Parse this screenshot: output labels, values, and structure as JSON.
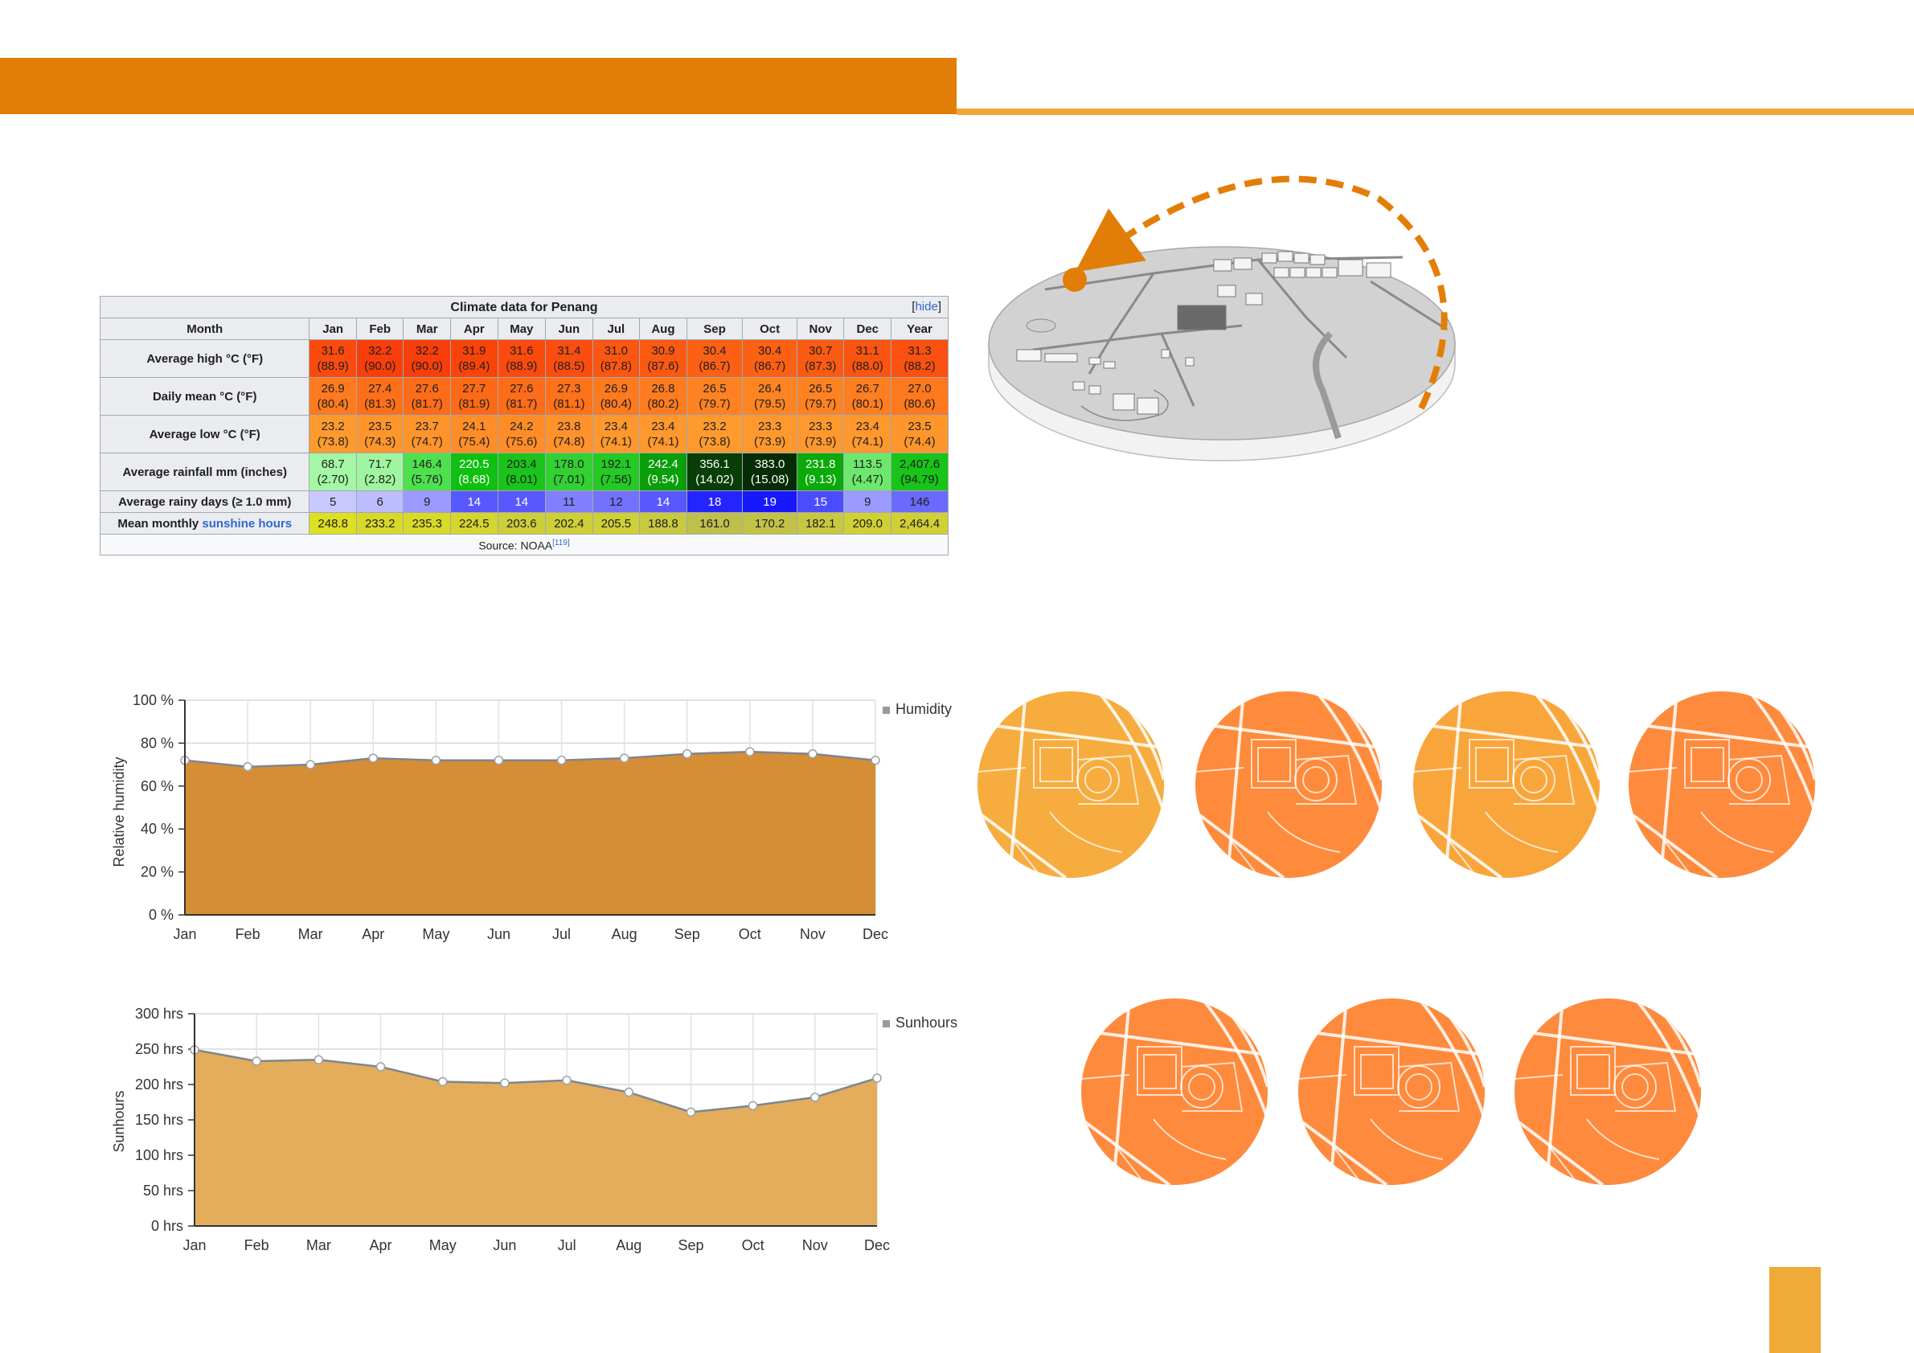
{
  "page": {
    "colors": {
      "top_bar": "#e27e07",
      "accent_line": "#efa636",
      "corner_block": "#efaa38"
    }
  },
  "climate_table": {
    "caption": "Climate data for Penang",
    "hide_label": "hide",
    "header": [
      "Month",
      "Jan",
      "Feb",
      "Mar",
      "Apr",
      "May",
      "Jun",
      "Jul",
      "Aug",
      "Sep",
      "Oct",
      "Nov",
      "Dec",
      "Year"
    ],
    "rows": [
      {
        "label": "Average high °C (°F)",
        "cells": [
          {
            "v": "31.6",
            "f": "(88.9)",
            "bg": "#fa4a0e",
            "fg": "#202020"
          },
          {
            "v": "32.2",
            "f": "(90.0)",
            "bg": "#f83e0a",
            "fg": "#202020"
          },
          {
            "v": "32.2",
            "f": "(90.0)",
            "bg": "#f83e0a",
            "fg": "#202020"
          },
          {
            "v": "31.9",
            "f": "(89.4)",
            "bg": "#f94409",
            "fg": "#202020"
          },
          {
            "v": "31.6",
            "f": "(88.9)",
            "bg": "#fa4a0e",
            "fg": "#202020"
          },
          {
            "v": "31.4",
            "f": "(88.5)",
            "bg": "#fa4e10",
            "fg": "#202020"
          },
          {
            "v": "31.0",
            "f": "(87.8)",
            "bg": "#fb5612",
            "fg": "#202020"
          },
          {
            "v": "30.9",
            "f": "(87.6)",
            "bg": "#fb5812",
            "fg": "#202020"
          },
          {
            "v": "30.4",
            "f": "(86.7)",
            "bg": "#fc6014",
            "fg": "#202020"
          },
          {
            "v": "30.4",
            "f": "(86.7)",
            "bg": "#fc6014",
            "fg": "#202020"
          },
          {
            "v": "30.7",
            "f": "(87.3)",
            "bg": "#fb5a13",
            "fg": "#202020"
          },
          {
            "v": "31.1",
            "f": "(88.0)",
            "bg": "#fa5411",
            "fg": "#202020"
          },
          {
            "v": "31.3",
            "f": "(88.2)",
            "bg": "#fa5010",
            "fg": "#202020"
          }
        ]
      },
      {
        "label": "Daily mean °C (°F)",
        "cells": [
          {
            "v": "26.9",
            "f": "(80.4)",
            "bg": "#fe7a1e",
            "fg": "#202020"
          },
          {
            "v": "27.4",
            "f": "(81.3)",
            "bg": "#fd7019",
            "fg": "#202020"
          },
          {
            "v": "27.6",
            "f": "(81.7)",
            "bg": "#fd6c18",
            "fg": "#202020"
          },
          {
            "v": "27.7",
            "f": "(81.9)",
            "bg": "#fd6a17",
            "fg": "#202020"
          },
          {
            "v": "27.6",
            "f": "(81.7)",
            "bg": "#fd6c18",
            "fg": "#202020"
          },
          {
            "v": "27.3",
            "f": "(81.1)",
            "bg": "#fd721a",
            "fg": "#202020"
          },
          {
            "v": "26.9",
            "f": "(80.4)",
            "bg": "#fe7a1e",
            "fg": "#202020"
          },
          {
            "v": "26.8",
            "f": "(80.2)",
            "bg": "#fe7c1f",
            "fg": "#202020"
          },
          {
            "v": "26.5",
            "f": "(79.7)",
            "bg": "#fe8222",
            "fg": "#202020"
          },
          {
            "v": "26.4",
            "f": "(79.5)",
            "bg": "#fe8422",
            "fg": "#202020"
          },
          {
            "v": "26.5",
            "f": "(79.7)",
            "bg": "#fe8222",
            "fg": "#202020"
          },
          {
            "v": "26.7",
            "f": "(80.1)",
            "bg": "#fe7e20",
            "fg": "#202020"
          },
          {
            "v": "27.0",
            "f": "(80.6)",
            "bg": "#fe781d",
            "fg": "#202020"
          }
        ]
      },
      {
        "label": "Average low °C (°F)",
        "cells": [
          {
            "v": "23.2",
            "f": "(73.8)",
            "bg": "#ff9a2e",
            "fg": "#202020"
          },
          {
            "v": "23.5",
            "f": "(74.3)",
            "bg": "#ff962c",
            "fg": "#202020"
          },
          {
            "v": "23.7",
            "f": "(74.7)",
            "bg": "#ff942b",
            "fg": "#202020"
          },
          {
            "v": "24.1",
            "f": "(75.4)",
            "bg": "#ff8e28",
            "fg": "#202020"
          },
          {
            "v": "24.2",
            "f": "(75.6)",
            "bg": "#ff8c27",
            "fg": "#202020"
          },
          {
            "v": "23.8",
            "f": "(74.8)",
            "bg": "#ff922a",
            "fg": "#202020"
          },
          {
            "v": "23.4",
            "f": "(74.1)",
            "bg": "#ff982d",
            "fg": "#202020"
          },
          {
            "v": "23.4",
            "f": "(74.1)",
            "bg": "#ff982d",
            "fg": "#202020"
          },
          {
            "v": "23.2",
            "f": "(73.8)",
            "bg": "#ff9a2e",
            "fg": "#202020"
          },
          {
            "v": "23.3",
            "f": "(73.9)",
            "bg": "#ff992e",
            "fg": "#202020"
          },
          {
            "v": "23.3",
            "f": "(73.9)",
            "bg": "#ff992e",
            "fg": "#202020"
          },
          {
            "v": "23.4",
            "f": "(74.1)",
            "bg": "#ff982d",
            "fg": "#202020"
          },
          {
            "v": "23.5",
            "f": "(74.4)",
            "bg": "#ff962c",
            "fg": "#202020"
          }
        ]
      },
      {
        "label": "Average rainfall mm (inches)",
        "cells": [
          {
            "v": "68.7",
            "f": "(2.70)",
            "bg": "#a4f7a4",
            "fg": "#202020"
          },
          {
            "v": "71.7",
            "f": "(2.82)",
            "bg": "#a0f6a0",
            "fg": "#202020"
          },
          {
            "v": "146.4",
            "f": "(5.76)",
            "bg": "#4ee04e",
            "fg": "#202020"
          },
          {
            "v": "220.5",
            "f": "(8.68)",
            "bg": "#10c010",
            "fg": "#ffffff"
          },
          {
            "v": "203.4",
            "f": "(8.01)",
            "bg": "#1ac41a",
            "fg": "#202020"
          },
          {
            "v": "178.0",
            "f": "(7.01)",
            "bg": "#32d032",
            "fg": "#202020"
          },
          {
            "v": "192.1",
            "f": "(7.56)",
            "bg": "#24c924",
            "fg": "#202020"
          },
          {
            "v": "242.4",
            "f": "(9.54)",
            "bg": "#0a9e0a",
            "fg": "#ffffff"
          },
          {
            "v": "356.1",
            "f": "(14.02)",
            "bg": "#073f07",
            "fg": "#ffffff"
          },
          {
            "v": "383.0",
            "f": "(15.08)",
            "bg": "#052d05",
            "fg": "#ffffff"
          },
          {
            "v": "231.8",
            "f": "(9.13)",
            "bg": "#0aaa0a",
            "fg": "#ffffff"
          },
          {
            "v": "113.5",
            "f": "(4.47)",
            "bg": "#6ce96c",
            "fg": "#202020"
          },
          {
            "v": "2,407.6",
            "f": "(94.79)",
            "bg": "#18c418",
            "fg": "#202020"
          }
        ]
      },
      {
        "label": "Average rainy days (≥ 1.0 mm)",
        "cells": [
          {
            "v": "5",
            "bg": "#c8c8ff",
            "fg": "#202020"
          },
          {
            "v": "6",
            "bg": "#bcbcff",
            "fg": "#202020"
          },
          {
            "v": "9",
            "bg": "#9a9aff",
            "fg": "#202020"
          },
          {
            "v": "14",
            "bg": "#5858ff",
            "fg": "#ffffff"
          },
          {
            "v": "14",
            "bg": "#5858ff",
            "fg": "#ffffff"
          },
          {
            "v": "11",
            "bg": "#8080ff",
            "fg": "#202020"
          },
          {
            "v": "12",
            "bg": "#7272ff",
            "fg": "#202020"
          },
          {
            "v": "14",
            "bg": "#5858ff",
            "fg": "#ffffff"
          },
          {
            "v": "18",
            "bg": "#2424ff",
            "fg": "#ffffff"
          },
          {
            "v": "19",
            "bg": "#1818ff",
            "fg": "#ffffff"
          },
          {
            "v": "15",
            "bg": "#4c4cff",
            "fg": "#ffffff"
          },
          {
            "v": "9",
            "bg": "#9a9aff",
            "fg": "#202020"
          },
          {
            "v": "146",
            "bg": "#6a6aff",
            "fg": "#202020"
          }
        ]
      },
      {
        "label_prefix": "Mean monthly ",
        "label_link": "sunshine hours",
        "cells": [
          {
            "v": "248.8",
            "bg": "#dede22",
            "fg": "#202020"
          },
          {
            "v": "233.2",
            "bg": "#d8d82a",
            "fg": "#202020"
          },
          {
            "v": "235.3",
            "bg": "#d9d929",
            "fg": "#202020"
          },
          {
            "v": "224.5",
            "bg": "#d5d52e",
            "fg": "#202020"
          },
          {
            "v": "203.6",
            "bg": "#cece38",
            "fg": "#202020"
          },
          {
            "v": "202.4",
            "bg": "#cece38",
            "fg": "#202020"
          },
          {
            "v": "205.5",
            "bg": "#cfcf36",
            "fg": "#202020"
          },
          {
            "v": "188.8",
            "bg": "#c9c93f",
            "fg": "#202020"
          },
          {
            "v": "161.0",
            "bg": "#bfbf4c",
            "fg": "#202020"
          },
          {
            "v": "170.2",
            "bg": "#c2c247",
            "fg": "#202020"
          },
          {
            "v": "182.1",
            "bg": "#c7c742",
            "fg": "#202020"
          },
          {
            "v": "209.0",
            "bg": "#d0d035",
            "fg": "#202020"
          },
          {
            "v": "2,464.4",
            "bg": "#d0d035",
            "fg": "#202020"
          }
        ]
      }
    ],
    "source_text": "Source: NOAA",
    "source_ref": "[119]"
  },
  "chart_data": [
    {
      "type": "area",
      "categories": [
        "Jan",
        "Feb",
        "Mar",
        "Apr",
        "May",
        "Jun",
        "Jul",
        "Aug",
        "Sep",
        "Oct",
        "Nov",
        "Dec"
      ],
      "series": [
        {
          "name": "Humidity",
          "values": [
            72,
            69,
            70,
            73,
            72,
            72,
            72,
            73,
            75,
            76,
            75,
            72
          ]
        }
      ],
      "ylabel": "Relative humidity",
      "yticks": [
        "0 %",
        "20 %",
        "40 %",
        "60 %",
        "80 %",
        "100 %"
      ],
      "ylim": [
        0,
        100
      ],
      "legend": "top-right",
      "grid": true,
      "fill": "#d58e36"
    },
    {
      "type": "area",
      "categories": [
        "Jan",
        "Feb",
        "Mar",
        "Apr",
        "May",
        "Jun",
        "Jul",
        "Aug",
        "Sep",
        "Oct",
        "Nov",
        "Dec"
      ],
      "series": [
        {
          "name": "Sunhours",
          "values": [
            249,
            233,
            235,
            225,
            204,
            202,
            206,
            189,
            161,
            170,
            182,
            209
          ]
        }
      ],
      "ylabel": "Sunhours",
      "yticks": [
        "0 hrs",
        "50 hrs",
        "100 hrs",
        "150 hrs",
        "200 hrs",
        "250 hrs",
        "300 hrs"
      ],
      "ylim": [
        0,
        300
      ],
      "legend": "top-right",
      "grid": true,
      "fill": "#e3ad5c"
    }
  ],
  "circle_maps": [
    {
      "color": "#f6ac3e"
    },
    {
      "color": "#fe8b3b"
    },
    {
      "color": "#f8a63c"
    },
    {
      "color": "#fe8a3d"
    },
    {
      "color": "#fe8a3d"
    },
    {
      "color": "#fe8a3d"
    },
    {
      "color": "#fe8a3d"
    }
  ]
}
